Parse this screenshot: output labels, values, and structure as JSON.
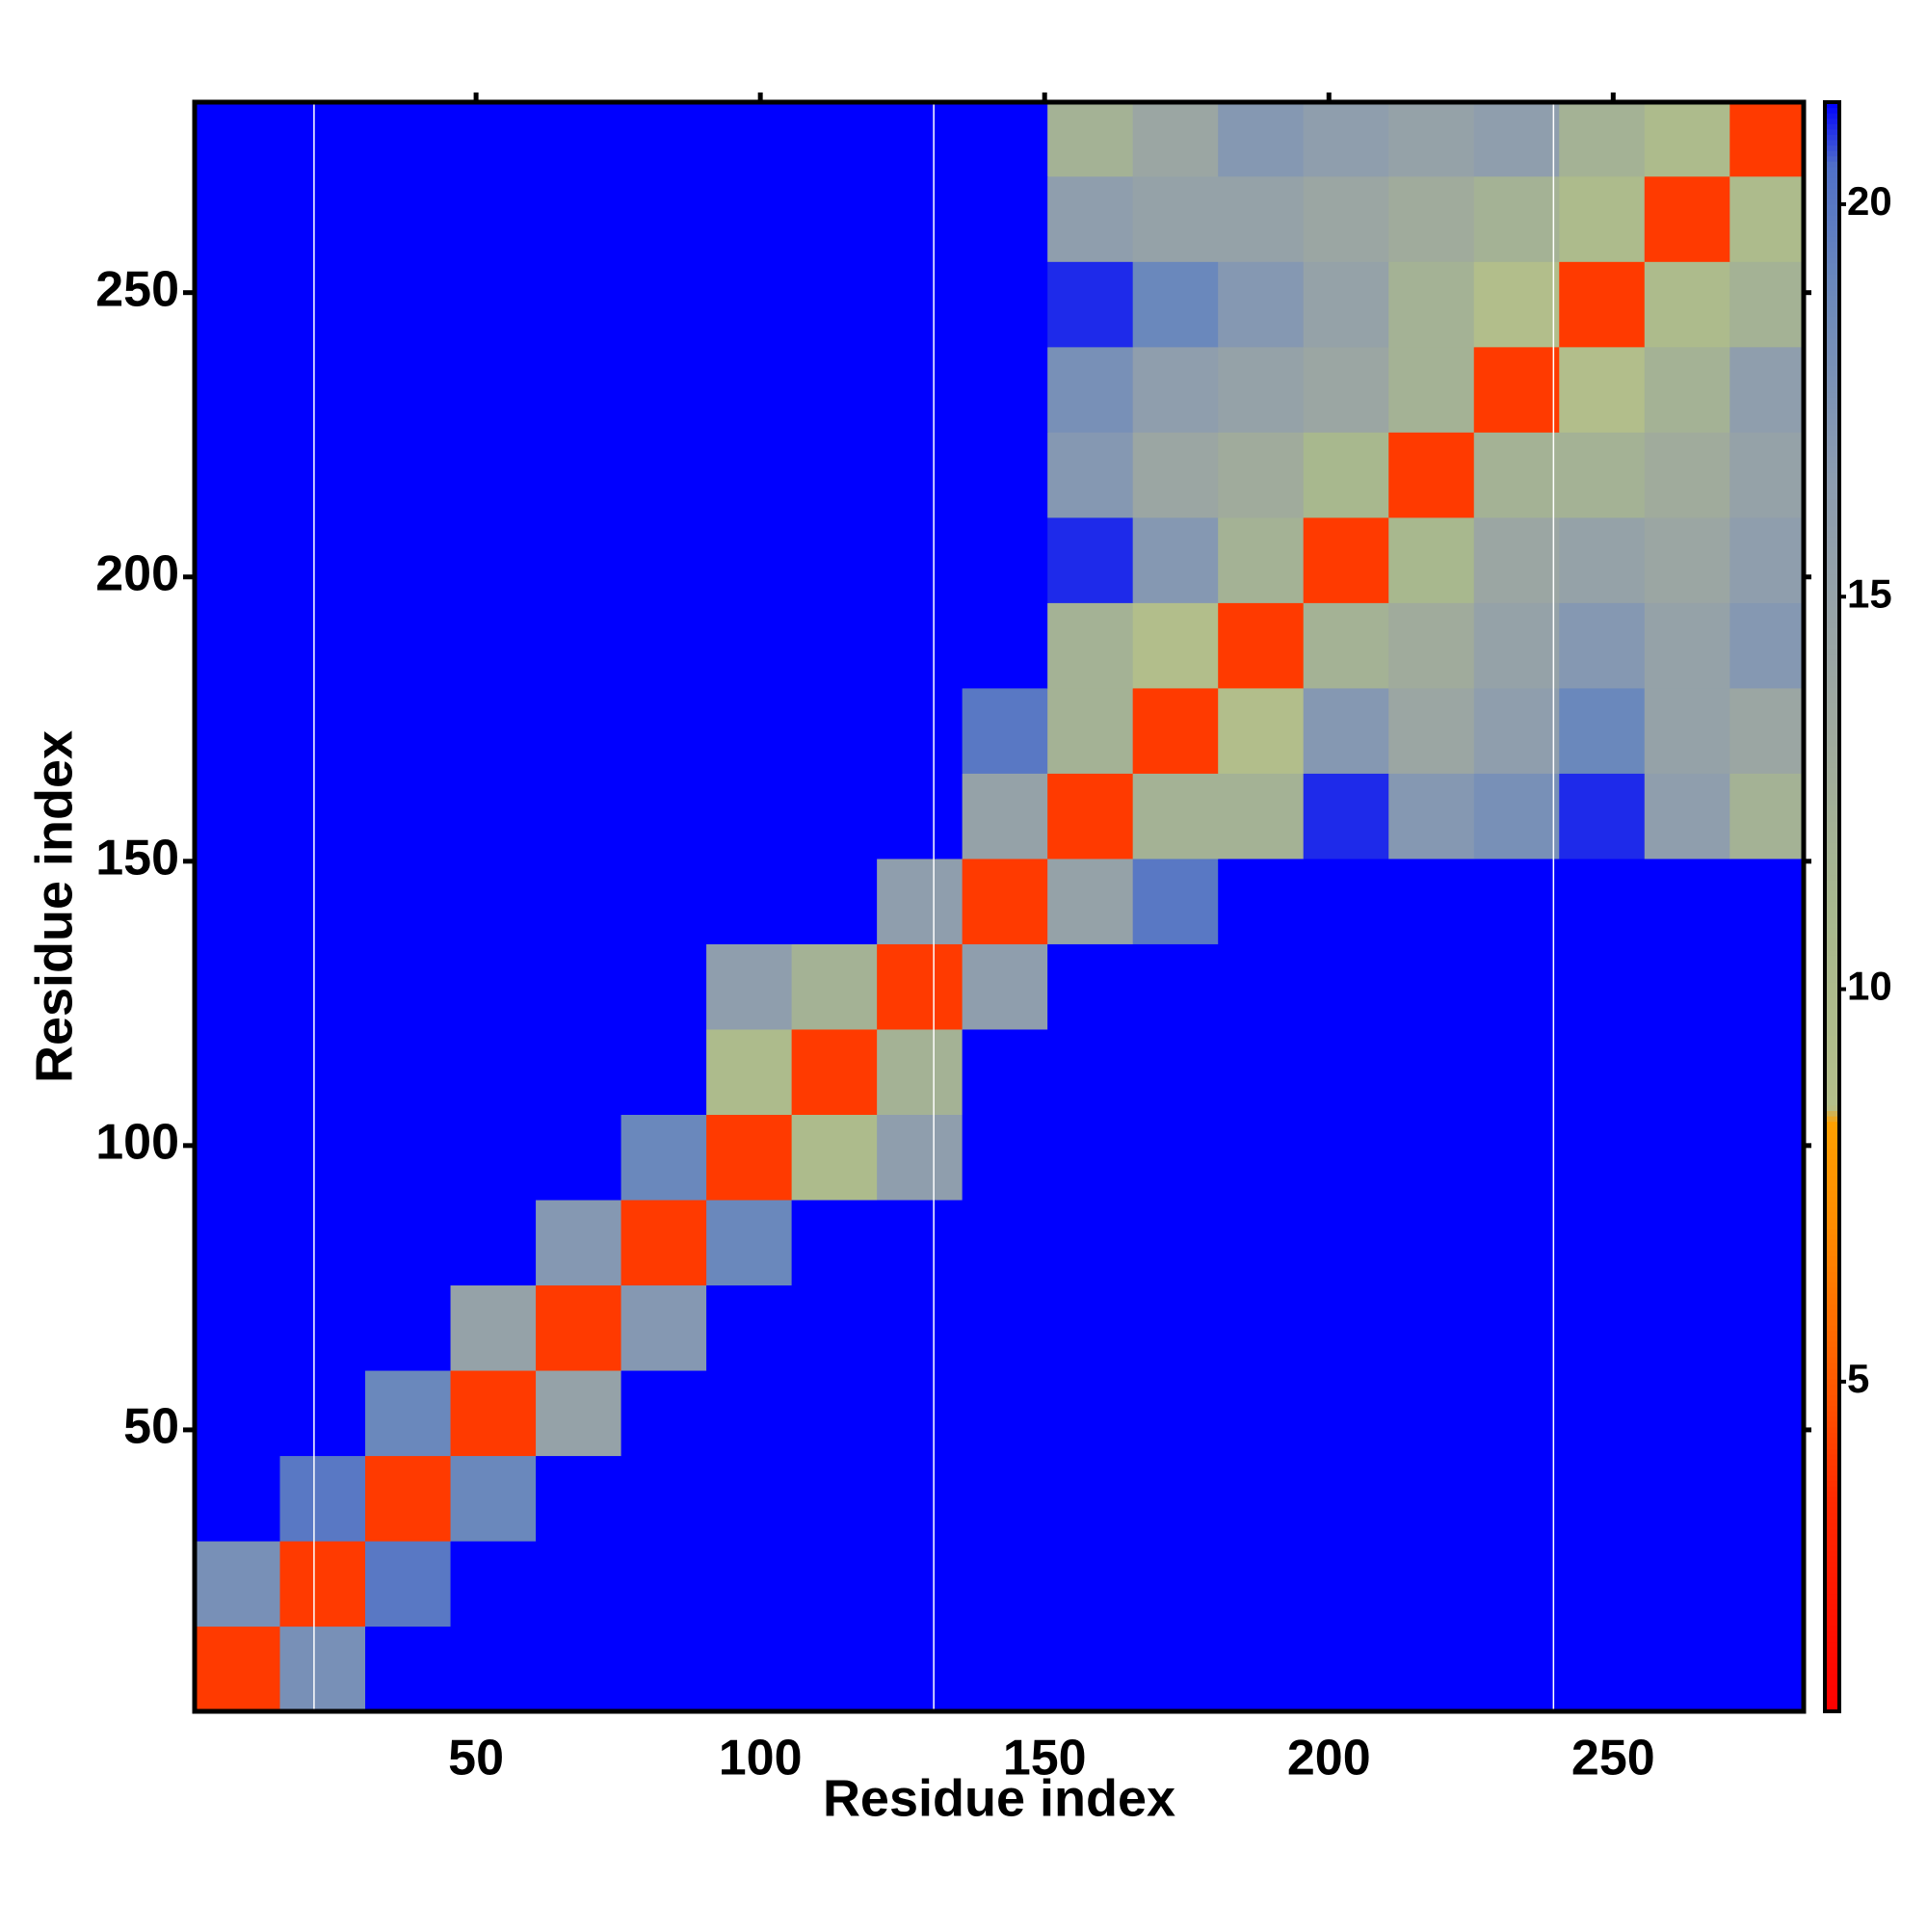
{
  "chart_data": {
    "type": "heatmap",
    "xlabel": "Residue index",
    "ylabel": "Residue index",
    "xlim": [
      0.5,
      283.5
    ],
    "ylim": [
      0.5,
      283.5
    ],
    "xticks": [
      50,
      100,
      150,
      200,
      250
    ],
    "yticks": [
      50,
      100,
      150,
      200,
      250
    ],
    "xbins": [
      0.5,
      15.5,
      30.5,
      45.5,
      60.5,
      75.5,
      90.5,
      105.5,
      120.5,
      135.5,
      150.5,
      165.5,
      180.5,
      195.5,
      210.5,
      225.5,
      240.5,
      255.5,
      270.5,
      283.5
    ],
    "ybins": [
      0.5,
      15.5,
      30.5,
      45.5,
      60.5,
      75.5,
      90.5,
      105.5,
      120.5,
      135.5,
      150.5,
      165.5,
      180.5,
      195.5,
      210.5,
      225.5,
      240.5,
      255.5,
      270.5,
      283.5
    ],
    "z": [
      [
        4,
        18,
        22,
        22,
        22,
        22,
        22,
        22,
        22,
        22,
        22,
        22,
        22,
        22,
        22,
        22,
        22,
        22,
        22
      ],
      [
        18,
        4,
        20,
        22,
        22,
        22,
        22,
        22,
        22,
        22,
        22,
        22,
        22,
        22,
        22,
        22,
        22,
        22,
        22
      ],
      [
        22,
        20,
        4,
        19,
        22,
        22,
        22,
        22,
        22,
        22,
        22,
        22,
        22,
        22,
        22,
        22,
        22,
        22,
        22
      ],
      [
        22,
        22,
        19,
        4,
        15,
        22,
        22,
        22,
        22,
        22,
        22,
        22,
        22,
        22,
        22,
        22,
        22,
        22,
        22
      ],
      [
        22,
        22,
        22,
        15,
        4,
        17,
        22,
        22,
        22,
        22,
        22,
        22,
        22,
        22,
        22,
        22,
        22,
        22,
        22
      ],
      [
        22,
        22,
        22,
        22,
        17,
        4,
        19,
        22,
        22,
        22,
        22,
        22,
        22,
        22,
        22,
        22,
        22,
        22,
        22
      ],
      [
        22,
        22,
        22,
        22,
        22,
        19,
        4,
        10,
        16,
        22,
        22,
        22,
        22,
        22,
        22,
        22,
        22,
        22,
        22
      ],
      [
        22,
        22,
        22,
        22,
        22,
        22,
        10,
        4,
        12,
        22,
        22,
        22,
        22,
        22,
        22,
        22,
        22,
        22,
        22
      ],
      [
        22,
        22,
        22,
        22,
        22,
        22,
        16,
        12,
        4,
        16,
        22,
        22,
        22,
        22,
        22,
        22,
        22,
        22,
        22
      ],
      [
        22,
        22,
        22,
        22,
        22,
        22,
        22,
        22,
        16,
        4,
        15,
        20,
        22,
        22,
        22,
        22,
        22,
        22,
        22
      ],
      [
        22,
        22,
        22,
        22,
        22,
        22,
        22,
        22,
        22,
        15,
        4,
        12,
        12,
        21,
        17,
        18,
        21,
        16,
        12
      ],
      [
        22,
        22,
        22,
        22,
        22,
        22,
        22,
        22,
        22,
        20,
        12,
        4,
        9,
        17,
        14,
        16,
        19,
        15,
        14
      ],
      [
        22,
        22,
        22,
        22,
        22,
        22,
        22,
        22,
        22,
        22,
        12,
        9,
        4,
        12,
        13,
        15,
        17,
        15,
        17
      ],
      [
        22,
        22,
        22,
        22,
        22,
        22,
        22,
        22,
        22,
        22,
        21,
        17,
        12,
        4,
        11,
        14,
        15,
        14,
        16
      ],
      [
        22,
        22,
        22,
        22,
        22,
        22,
        22,
        22,
        22,
        22,
        17,
        14,
        13,
        11,
        4,
        12,
        12,
        13,
        15
      ],
      [
        22,
        22,
        22,
        22,
        22,
        22,
        22,
        22,
        22,
        22,
        18,
        16,
        15,
        14,
        12,
        4,
        9,
        12,
        16
      ],
      [
        22,
        22,
        22,
        22,
        22,
        22,
        22,
        22,
        22,
        22,
        21,
        19,
        17,
        15,
        12,
        9,
        4,
        10,
        12
      ],
      [
        22,
        22,
        22,
        22,
        22,
        22,
        22,
        22,
        22,
        22,
        16,
        15,
        15,
        14,
        13,
        12,
        10,
        4,
        10
      ],
      [
        22,
        22,
        22,
        22,
        22,
        22,
        22,
        22,
        22,
        22,
        12,
        14,
        17,
        16,
        15,
        16,
        12,
        10,
        4
      ]
    ],
    "vlines": [
      21.5,
      130.5,
      239.5
    ],
    "clim": [
      0.8,
      21.3
    ],
    "cticks": [
      5,
      10,
      15,
      20
    ],
    "colorscale": [
      {
        "value": 0.8,
        "color": "#ff0000"
      },
      {
        "value": 3.5,
        "color": "#ff2a00"
      },
      {
        "value": 5,
        "color": "#ff5a00"
      },
      {
        "value": 7,
        "color": "#ff8c00"
      },
      {
        "value": 8.3,
        "color": "#ffa000"
      },
      {
        "value": 8.5,
        "color": "#b4bf8a"
      },
      {
        "value": 11,
        "color": "#a8b88e"
      },
      {
        "value": 13.5,
        "color": "#9ea8a0"
      },
      {
        "value": 16.5,
        "color": "#8c9cb0"
      },
      {
        "value": 19,
        "color": "#6a88bc"
      },
      {
        "value": 20.5,
        "color": "#5070c8"
      },
      {
        "value": 21.3,
        "color": "#0000ff"
      }
    ],
    "over_color": "#0000ff"
  }
}
